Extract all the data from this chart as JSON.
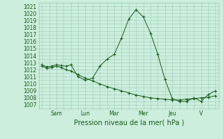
{
  "xlabel": "Pression niveau de la mer( hPa )",
  "background_color": "#cceedd",
  "grid_color": "#99ccbb",
  "line_color": "#1a5c1a",
  "ylim": [
    1006.5,
    1021.5
  ],
  "yticks": [
    1007,
    1008,
    1009,
    1010,
    1011,
    1012,
    1013,
    1014,
    1015,
    1016,
    1017,
    1018,
    1019,
    1020,
    1021
  ],
  "day_labels": [
    "Sam",
    "Lun",
    "Mar",
    "Mer",
    "Jeu",
    "V"
  ],
  "day_positions": [
    1,
    3,
    5,
    7,
    9,
    11
  ],
  "xlim": [
    -0.2,
    12.2
  ],
  "line1_x": [
    0,
    0.33,
    0.67,
    1.0,
    1.33,
    1.67,
    2.0,
    2.5,
    3.0,
    3.5,
    4.0,
    4.5,
    5.0,
    5.5,
    6.0,
    6.5,
    7.0,
    7.5,
    8.0,
    8.5,
    9.0,
    9.5,
    10.0,
    10.5,
    11.0,
    11.5,
    12.0
  ],
  "line1_y": [
    1012.7,
    1012.4,
    1012.5,
    1012.7,
    1012.6,
    1012.5,
    1012.7,
    1011.0,
    1010.5,
    1010.8,
    1012.5,
    1013.5,
    1014.2,
    1016.5,
    1019.2,
    1020.5,
    1019.5,
    1017.2,
    1014.2,
    1010.6,
    1007.9,
    1007.5,
    1007.5,
    1008.0,
    1007.5,
    1008.5,
    1009.0
  ],
  "line2_x": [
    0,
    0.33,
    0.67,
    1.0,
    1.33,
    1.67,
    2.0,
    2.5,
    3.0,
    3.5,
    4.0,
    4.5,
    5.0,
    5.5,
    6.0,
    6.5,
    7.0,
    7.5,
    8.0,
    8.5,
    9.0,
    9.5,
    10.0,
    10.5,
    11.0,
    11.5,
    12.0
  ],
  "line2_y": [
    1012.5,
    1012.2,
    1012.3,
    1012.5,
    1012.3,
    1012.0,
    1011.8,
    1011.3,
    1010.8,
    1010.4,
    1010.0,
    1009.6,
    1009.3,
    1009.0,
    1008.7,
    1008.4,
    1008.2,
    1008.0,
    1007.9,
    1007.8,
    1007.7,
    1007.7,
    1007.8,
    1007.9,
    1008.0,
    1008.1,
    1008.3
  ],
  "fontsize_ticks": 5.5,
  "fontsize_xlabel": 7
}
